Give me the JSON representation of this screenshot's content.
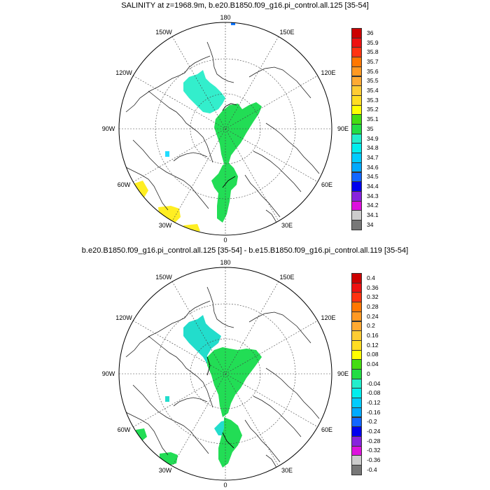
{
  "panels": [
    {
      "title": "SALINITY at z=1968.9m, b.e20.B1850.f09_g16.pi_control.all.125 [35-54]",
      "lon_labels": {
        "top": "180",
        "bottom": "0",
        "left": "90W",
        "right": "90E",
        "top_left": "150W",
        "top_right": "150E",
        "upper_left": "120W",
        "upper_right": "120E",
        "lower_left": "60W",
        "lower_right": "60E",
        "bottom_left": "30W",
        "bottom_right": "30E"
      },
      "colorbar": {
        "labels": [
          "36",
          "35.9",
          "35.8",
          "35.7",
          "35.6",
          "35.5",
          "35.4",
          "35.3",
          "35.2",
          "35.1",
          "35",
          "34.9",
          "34.8",
          "34.7",
          "34.6",
          "34.5",
          "34.4",
          "34.3",
          "34.2",
          "34.1",
          "34"
        ],
        "colors": [
          "#cc0000",
          "#ee1111",
          "#ff3311",
          "#ff7700",
          "#ff9922",
          "#ffaa33",
          "#ffcc33",
          "#ffdd22",
          "#ffff00",
          "#44dd11",
          "#22dd44",
          "#22eecc",
          "#00eeee",
          "#00ccff",
          "#00aaff",
          "#1166ff",
          "#0000ee",
          "#8822dd",
          "#dd11dd",
          "#cccccc",
          "#777777"
        ]
      },
      "fills": {
        "cyan": "#33eecc",
        "green": "#22dd55",
        "green_dark": "#44cc22",
        "yellow": "#ffee22",
        "light_cyan": "#22ddff",
        "blue": "#1177ff"
      }
    },
    {
      "title": "b.e20.B1850.f09_g16.pi_control.all.125 [35-54] - b.e15.B1850.f09_g16.pi_control.all.119 [35-54]",
      "lon_labels": {
        "top": "180",
        "bottom": "0",
        "left": "90W",
        "right": "90E",
        "top_left": "150W",
        "top_right": "150E",
        "upper_left": "120W",
        "upper_right": "120E",
        "lower_left": "60W",
        "lower_right": "60E",
        "bottom_left": "30W",
        "bottom_right": "30E"
      },
      "colorbar": {
        "labels": [
          "0.4",
          "0.36",
          "0.32",
          "0.28",
          "0.24",
          "0.2",
          "0.16",
          "0.12",
          "0.08",
          "0.04",
          "0",
          "-0.04",
          "-0.08",
          "-0.12",
          "-0.16",
          "-0.2",
          "-0.24",
          "-0.28",
          "-0.32",
          "-0.36",
          "-0.4"
        ],
        "colors": [
          "#cc0000",
          "#ee1111",
          "#ff3311",
          "#ff7700",
          "#ff9922",
          "#ffaa33",
          "#ffcc33",
          "#ffdd22",
          "#ffff00",
          "#44dd11",
          "#22dd44",
          "#22eecc",
          "#00eeee",
          "#00ccff",
          "#00aaff",
          "#1166ff",
          "#0000ee",
          "#8822dd",
          "#dd11dd",
          "#cccccc",
          "#777777"
        ]
      },
      "fills": {
        "cyan": "#22ddcc",
        "green": "#22dd55"
      }
    }
  ]
}
